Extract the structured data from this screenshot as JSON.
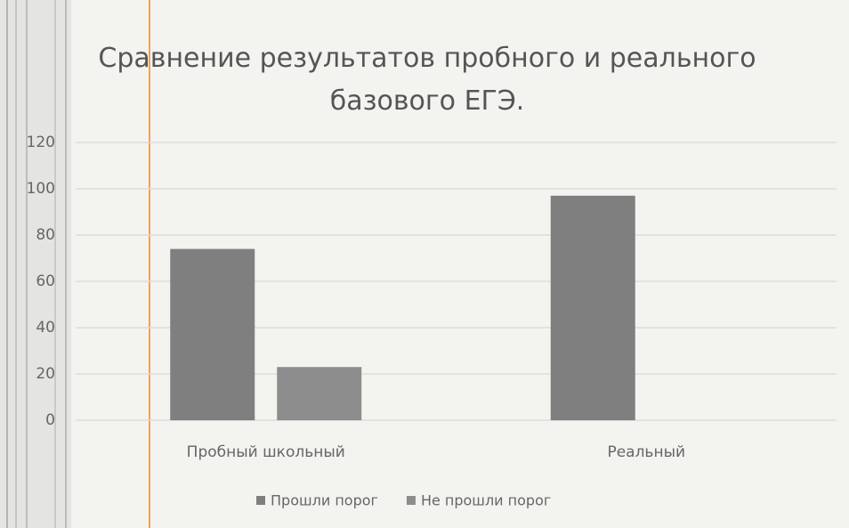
{
  "chart_data": {
    "type": "bar",
    "title": "Сравнение результатов пробного и реального базового ЕГЭ.",
    "categories": [
      "Пробный школьный",
      "Реальный"
    ],
    "series": [
      {
        "name": "Прошли порог",
        "color": "#7f7f7f",
        "values": [
          74,
          97
        ]
      },
      {
        "name": "Не прошли порог",
        "color": "#8d8d8d",
        "values": [
          23,
          0
        ]
      }
    ],
    "ylim": [
      0,
      120
    ],
    "yticks": [
      0,
      20,
      40,
      60,
      80,
      100,
      120
    ],
    "grid": true,
    "legend": "bottom"
  }
}
